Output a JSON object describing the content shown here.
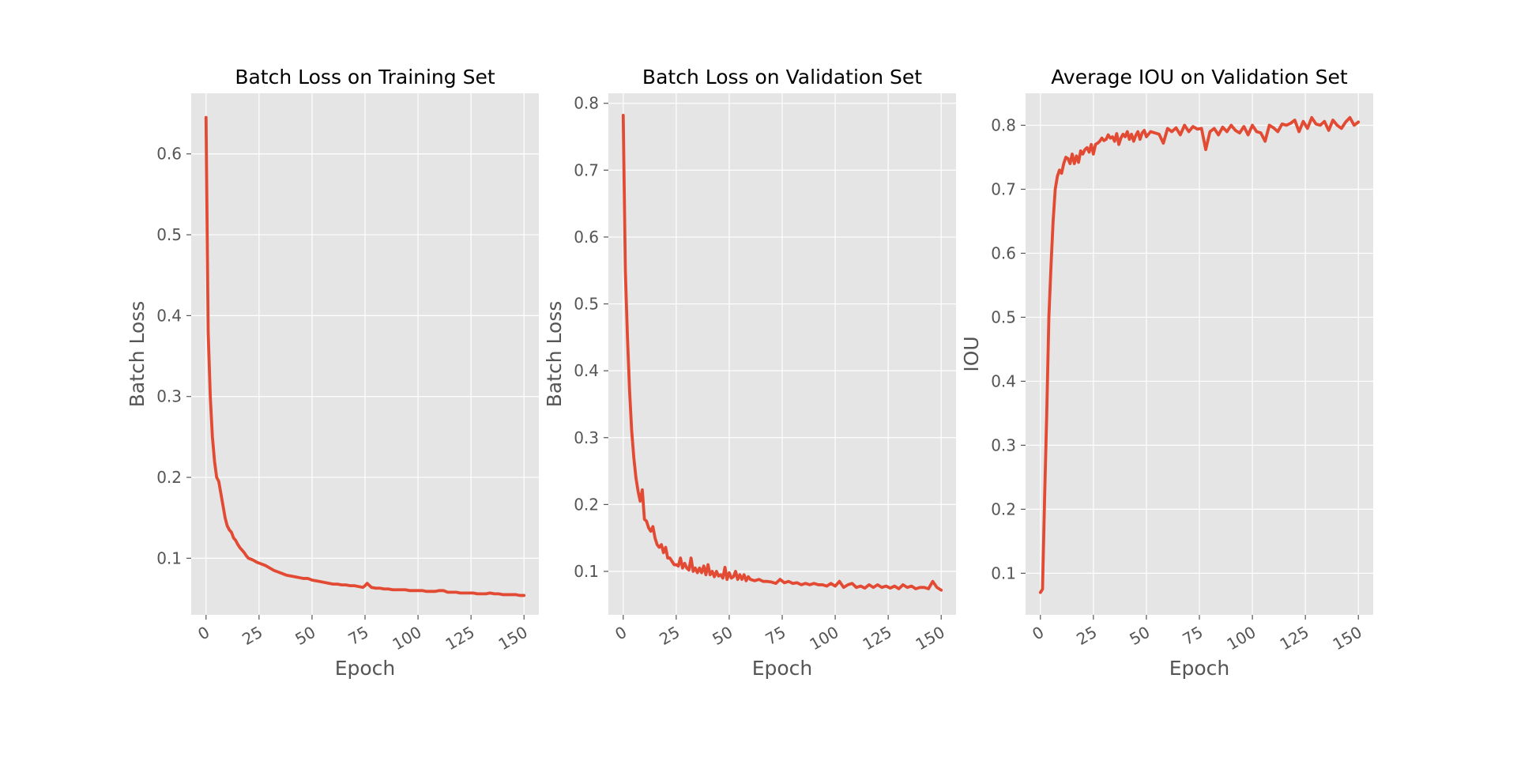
{
  "colors": {
    "series": "#e24a33",
    "panel": "#e5e5e5",
    "grid": "#ffffff",
    "text": "#555555"
  },
  "chart_data": [
    {
      "type": "line",
      "title": "Batch Loss on Training Set",
      "xlabel": "Epoch",
      "ylabel": "Batch Loss",
      "xlim": [
        -7,
        157
      ],
      "ylim": [
        0.03,
        0.675
      ],
      "xticks": [
        0,
        25,
        50,
        75,
        100,
        125,
        150
      ],
      "yticks": [
        0.1,
        0.2,
        0.3,
        0.4,
        0.5,
        0.6
      ],
      "grid": true,
      "series": [
        {
          "x": [
            0,
            1,
            2,
            3,
            4,
            5,
            6,
            7,
            8,
            9,
            10,
            11,
            12,
            13,
            14,
            15,
            16,
            17,
            18,
            19,
            20,
            22,
            24,
            26,
            28,
            30,
            32,
            34,
            36,
            38,
            40,
            42,
            44,
            46,
            48,
            50,
            52,
            54,
            56,
            58,
            60,
            62,
            64,
            66,
            68,
            70,
            72,
            74,
            75,
            76,
            78,
            80,
            82,
            84,
            86,
            88,
            90,
            92,
            94,
            96,
            98,
            100,
            102,
            104,
            106,
            108,
            110,
            112,
            114,
            116,
            118,
            120,
            122,
            124,
            126,
            128,
            130,
            132,
            134,
            136,
            138,
            140,
            142,
            144,
            146,
            148,
            150
          ],
          "y": [
            0.645,
            0.38,
            0.3,
            0.25,
            0.22,
            0.2,
            0.195,
            0.18,
            0.165,
            0.15,
            0.14,
            0.135,
            0.132,
            0.125,
            0.122,
            0.117,
            0.113,
            0.11,
            0.107,
            0.103,
            0.1,
            0.098,
            0.095,
            0.093,
            0.091,
            0.088,
            0.085,
            0.083,
            0.081,
            0.079,
            0.078,
            0.077,
            0.076,
            0.075,
            0.075,
            0.073,
            0.072,
            0.071,
            0.07,
            0.069,
            0.068,
            0.068,
            0.067,
            0.067,
            0.066,
            0.066,
            0.065,
            0.064,
            0.066,
            0.069,
            0.064,
            0.063,
            0.063,
            0.062,
            0.062,
            0.061,
            0.061,
            0.061,
            0.061,
            0.06,
            0.06,
            0.06,
            0.06,
            0.059,
            0.059,
            0.059,
            0.06,
            0.06,
            0.058,
            0.058,
            0.058,
            0.057,
            0.057,
            0.057,
            0.057,
            0.056,
            0.056,
            0.056,
            0.057,
            0.056,
            0.056,
            0.055,
            0.055,
            0.055,
            0.055,
            0.054,
            0.054
          ]
        }
      ]
    },
    {
      "type": "line",
      "title": "Batch Loss on Validation Set",
      "xlabel": "Epoch",
      "ylabel": "Batch Loss",
      "xlim": [
        -7,
        157
      ],
      "ylim": [
        0.035,
        0.815
      ],
      "xticks": [
        0,
        25,
        50,
        75,
        100,
        125,
        150
      ],
      "yticks": [
        0.1,
        0.2,
        0.3,
        0.4,
        0.5,
        0.6,
        0.7,
        0.8
      ],
      "grid": true,
      "series": [
        {
          "x": [
            0,
            1,
            2,
            3,
            4,
            5,
            6,
            7,
            8,
            9,
            10,
            11,
            12,
            13,
            14,
            15,
            16,
            17,
            18,
            19,
            20,
            21,
            22,
            23,
            24,
            25,
            26,
            27,
            28,
            29,
            30,
            31,
            32,
            33,
            34,
            35,
            36,
            37,
            38,
            39,
            40,
            41,
            42,
            43,
            44,
            45,
            46,
            47,
            48,
            49,
            50,
            51,
            52,
            53,
            54,
            55,
            56,
            57,
            58,
            59,
            60,
            62,
            64,
            66,
            68,
            70,
            72,
            74,
            76,
            78,
            80,
            82,
            84,
            86,
            88,
            90,
            92,
            94,
            96,
            98,
            100,
            102,
            104,
            106,
            108,
            110,
            112,
            114,
            116,
            118,
            120,
            122,
            124,
            126,
            128,
            130,
            132,
            134,
            136,
            138,
            140,
            142,
            144,
            146,
            148,
            150
          ],
          "y": [
            0.782,
            0.55,
            0.45,
            0.37,
            0.31,
            0.27,
            0.24,
            0.22,
            0.205,
            0.222,
            0.178,
            0.175,
            0.165,
            0.16,
            0.167,
            0.15,
            0.14,
            0.136,
            0.14,
            0.128,
            0.136,
            0.12,
            0.12,
            0.115,
            0.11,
            0.11,
            0.108,
            0.12,
            0.105,
            0.112,
            0.105,
            0.102,
            0.12,
            0.1,
            0.105,
            0.098,
            0.105,
            0.098,
            0.108,
            0.095,
            0.11,
            0.095,
            0.1,
            0.092,
            0.1,
            0.093,
            0.095,
            0.09,
            0.106,
            0.088,
            0.098,
            0.09,
            0.092,
            0.1,
            0.088,
            0.095,
            0.088,
            0.095,
            0.086,
            0.092,
            0.088,
            0.086,
            0.088,
            0.085,
            0.085,
            0.084,
            0.082,
            0.088,
            0.083,
            0.085,
            0.082,
            0.083,
            0.08,
            0.082,
            0.08,
            0.082,
            0.08,
            0.08,
            0.078,
            0.082,
            0.078,
            0.085,
            0.076,
            0.08,
            0.082,
            0.076,
            0.078,
            0.075,
            0.08,
            0.076,
            0.08,
            0.076,
            0.078,
            0.075,
            0.078,
            0.074,
            0.08,
            0.076,
            0.078,
            0.074,
            0.076,
            0.076,
            0.074,
            0.085,
            0.076,
            0.072
          ]
        }
      ]
    },
    {
      "type": "line",
      "title": "Average IOU on Validation Set",
      "xlabel": "Epoch",
      "ylabel": "IOU",
      "xlim": [
        -7,
        157
      ],
      "ylim": [
        0.035,
        0.85
      ],
      "xticks": [
        0,
        25,
        50,
        75,
        100,
        125,
        150
      ],
      "yticks": [
        0.1,
        0.2,
        0.3,
        0.4,
        0.5,
        0.6,
        0.7,
        0.8
      ],
      "grid": true,
      "series": [
        {
          "x": [
            0,
            1,
            2,
            3,
            4,
            5,
            6,
            7,
            8,
            9,
            10,
            11,
            12,
            13,
            14,
            15,
            16,
            17,
            18,
            19,
            20,
            21,
            22,
            23,
            24,
            25,
            26,
            27,
            28,
            29,
            30,
            31,
            32,
            33,
            34,
            35,
            36,
            37,
            38,
            39,
            40,
            41,
            42,
            43,
            44,
            45,
            46,
            47,
            48,
            49,
            50,
            52,
            54,
            56,
            58,
            60,
            62,
            64,
            66,
            68,
            70,
            72,
            74,
            76,
            78,
            80,
            82,
            84,
            86,
            88,
            90,
            92,
            94,
            96,
            98,
            100,
            102,
            104,
            106,
            108,
            110,
            112,
            114,
            116,
            118,
            120,
            122,
            124,
            126,
            128,
            130,
            132,
            134,
            136,
            138,
            140,
            142,
            144,
            146,
            148,
            150
          ],
          "y": [
            0.07,
            0.075,
            0.22,
            0.35,
            0.5,
            0.58,
            0.65,
            0.7,
            0.72,
            0.73,
            0.725,
            0.74,
            0.75,
            0.748,
            0.74,
            0.755,
            0.74,
            0.752,
            0.742,
            0.76,
            0.755,
            0.762,
            0.765,
            0.758,
            0.77,
            0.755,
            0.77,
            0.772,
            0.775,
            0.78,
            0.776,
            0.778,
            0.785,
            0.78,
            0.782,
            0.775,
            0.787,
            0.77,
            0.78,
            0.786,
            0.782,
            0.79,
            0.778,
            0.786,
            0.775,
            0.784,
            0.79,
            0.778,
            0.788,
            0.792,
            0.782,
            0.79,
            0.788,
            0.786,
            0.772,
            0.795,
            0.79,
            0.796,
            0.785,
            0.8,
            0.79,
            0.798,
            0.794,
            0.795,
            0.762,
            0.79,
            0.795,
            0.785,
            0.797,
            0.79,
            0.8,
            0.792,
            0.788,
            0.798,
            0.785,
            0.8,
            0.79,
            0.788,
            0.775,
            0.8,
            0.796,
            0.79,
            0.802,
            0.8,
            0.803,
            0.808,
            0.79,
            0.806,
            0.795,
            0.812,
            0.802,
            0.8,
            0.806,
            0.792,
            0.808,
            0.8,
            0.795,
            0.805,
            0.812,
            0.8,
            0.805
          ]
        }
      ]
    }
  ]
}
